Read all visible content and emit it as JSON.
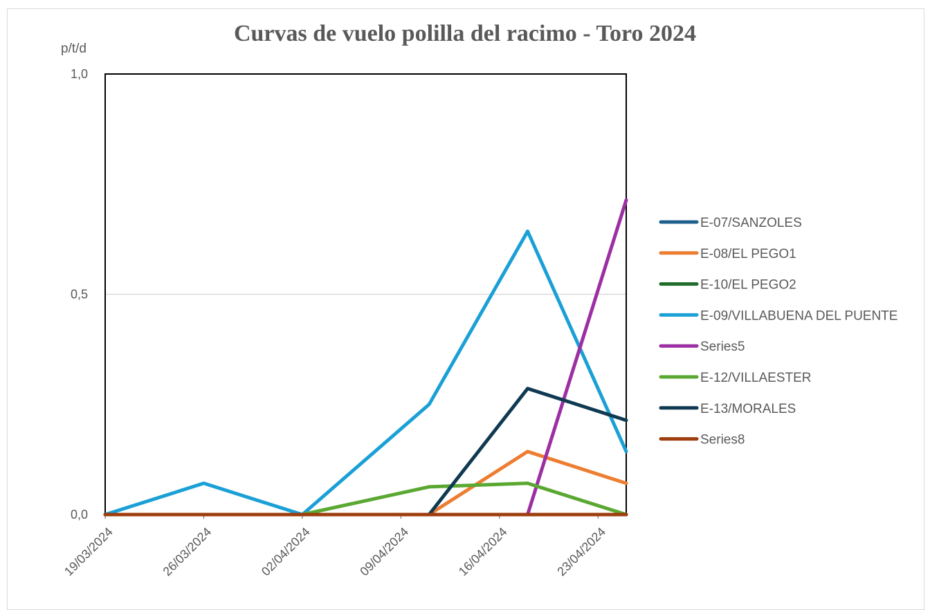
{
  "chart_data": {
    "type": "line",
    "title": "Curvas de vuelo polilla del racimo - Toro 2024",
    "ylabel": "p/t/d",
    "xlabel": "",
    "ylim": [
      0,
      1
    ],
    "y_ticks": [
      "0,0",
      "0,5",
      "1,0"
    ],
    "x_ticks": [
      "19/03/2024",
      "26/03/2024",
      "02/04/2024",
      "09/04/2024",
      "16/04/2024",
      "23/04/2024"
    ],
    "x": [
      "19/03/2024",
      "26/03/2024",
      "02/04/2024",
      "11/04/2024",
      "18/04/2024",
      "25/04/2024"
    ],
    "grid": "horizontal",
    "legend_position": "right",
    "series": [
      {
        "name": "E-07/SANZOLES",
        "color": "#1f5f8b",
        "values": [
          0,
          0,
          0,
          0,
          0,
          0
        ]
      },
      {
        "name": "E-08/EL PEGO1",
        "color": "#ed7d31",
        "values": [
          0,
          0,
          0,
          0,
          0.143,
          0.071
        ]
      },
      {
        "name": "E-10/EL PEGO2",
        "color": "#1e6b2a",
        "values": [
          0,
          0,
          0,
          0,
          0,
          0
        ]
      },
      {
        "name": "E-09/VILLABUENA DEL PUENTE",
        "color": "#1aa0d6",
        "values": [
          0,
          0.071,
          0,
          0.25,
          0.643,
          0.143
        ]
      },
      {
        "name": "Series5",
        "color": "#9b2fa3",
        "values": [
          null,
          null,
          null,
          null,
          0,
          0.714
        ]
      },
      {
        "name": "E-12/VILLAESTER",
        "color": "#5aa832",
        "values": [
          null,
          null,
          0,
          0.063,
          0.071,
          0
        ]
      },
      {
        "name": "E-13/MORALES",
        "color": "#0f3a52",
        "values": [
          null,
          null,
          null,
          0,
          0.286,
          0.214
        ]
      },
      {
        "name": "Series8",
        "color": "#9e3d0d",
        "values": [
          0,
          0,
          0,
          0,
          0,
          0
        ]
      }
    ]
  }
}
